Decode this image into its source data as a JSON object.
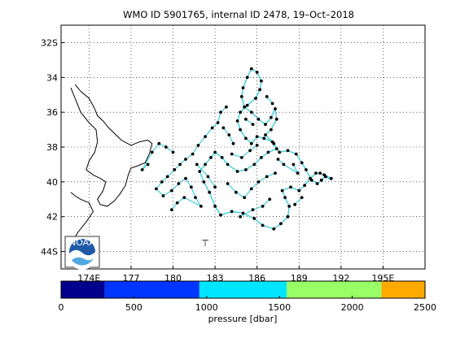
{
  "title": "WMO ID 5901765, internal ID 2478, 19–Oct–2018",
  "map": {
    "lon_range": [
      172,
      198
    ],
    "lat_range": [
      -45,
      -31
    ],
    "lon_ticks": [
      {
        "value": 174,
        "label": "174E"
      },
      {
        "value": 177,
        "label": "177"
      },
      {
        "value": 180,
        "label": "180"
      },
      {
        "value": 183,
        "label": "183"
      },
      {
        "value": 186,
        "label": "186"
      },
      {
        "value": 189,
        "label": "189"
      },
      {
        "value": 192,
        "label": "192"
      },
      {
        "value": 195,
        "label": "195E"
      }
    ],
    "lat_ticks": [
      {
        "value": -32,
        "label": "32S"
      },
      {
        "value": -34,
        "label": "34"
      },
      {
        "value": -36,
        "label": "36"
      },
      {
        "value": -38,
        "label": "38"
      },
      {
        "value": -40,
        "label": "40"
      },
      {
        "value": -42,
        "label": "42"
      },
      {
        "value": -44,
        "label": "44S"
      }
    ],
    "grid": true,
    "grid_style": "dotted",
    "coastline_color": "#000000",
    "track_line_color": "#40d0d8",
    "point_color": "#000000",
    "coastline": [
      [
        173.0,
        -34.4
      ],
      [
        173.4,
        -34.8
      ],
      [
        174.0,
        -35.2
      ],
      [
        174.4,
        -35.8
      ],
      [
        174.6,
        -36.2
      ],
      [
        175.0,
        -36.5
      ],
      [
        175.4,
        -36.9
      ],
      [
        175.8,
        -37.2
      ],
      [
        176.3,
        -37.6
      ],
      [
        177.0,
        -37.9
      ],
      [
        177.6,
        -37.7
      ],
      [
        178.2,
        -37.6
      ],
      [
        178.5,
        -37.8
      ],
      [
        178.3,
        -38.4
      ],
      [
        178.0,
        -38.9
      ],
      [
        177.4,
        -39.1
      ],
      [
        177.0,
        -39.2
      ],
      [
        176.8,
        -39.6
      ],
      [
        176.6,
        -40.2
      ],
      [
        176.2,
        -40.7
      ],
      [
        175.8,
        -41.1
      ],
      [
        175.3,
        -41.4
      ],
      [
        174.8,
        -41.3
      ],
      [
        174.6,
        -41.0
      ],
      [
        175.0,
        -40.5
      ],
      [
        175.2,
        -40.0
      ],
      [
        174.8,
        -39.8
      ],
      [
        174.3,
        -39.6
      ],
      [
        173.8,
        -39.3
      ],
      [
        174.0,
        -38.8
      ],
      [
        174.4,
        -38.3
      ],
      [
        174.6,
        -37.7
      ],
      [
        174.5,
        -37.0
      ],
      [
        174.0,
        -36.6
      ],
      [
        173.4,
        -36.0
      ],
      [
        173.0,
        -35.2
      ],
      [
        172.7,
        -34.6
      ]
    ],
    "coastline_south": [
      [
        172.7,
        -40.6
      ],
      [
        173.0,
        -40.8
      ],
      [
        173.4,
        -41.0
      ],
      [
        174.0,
        -41.2
      ],
      [
        174.3,
        -41.7
      ],
      [
        173.8,
        -42.3
      ],
      [
        173.2,
        -42.9
      ],
      [
        172.7,
        -43.6
      ]
    ],
    "track": [
      [
        191.3,
        -39.8
      ],
      [
        190.8,
        -39.6
      ],
      [
        190.5,
        -39.5
      ],
      [
        190.2,
        -39.5
      ],
      [
        189.8,
        -39.8
      ],
      [
        189.4,
        -40.2
      ],
      [
        189.0,
        -40.5
      ],
      [
        188.4,
        -40.3
      ],
      [
        187.8,
        -40.5
      ],
      [
        188.0,
        -40.9
      ],
      [
        188.3,
        -41.4
      ],
      [
        188.2,
        -42.0
      ],
      [
        187.7,
        -42.4
      ],
      [
        187.2,
        -42.7
      ],
      [
        186.4,
        -42.5
      ],
      [
        185.8,
        -42.1
      ],
      [
        185.0,
        -41.8
      ],
      [
        184.2,
        -41.7
      ],
      [
        183.4,
        -41.9
      ],
      [
        183.0,
        -41.4
      ],
      [
        182.6,
        -40.6
      ],
      [
        182.2,
        -40.0
      ],
      [
        181.9,
        -39.4
      ],
      [
        182.3,
        -39.0
      ],
      [
        182.7,
        -38.6
      ],
      [
        183.0,
        -38.3
      ],
      [
        183.5,
        -38.6
      ],
      [
        183.9,
        -39.0
      ],
      [
        184.6,
        -39.4
      ],
      [
        185.2,
        -39.3
      ],
      [
        185.8,
        -39.0
      ],
      [
        186.3,
        -38.6
      ],
      [
        186.8,
        -38.3
      ],
      [
        187.4,
        -38.1
      ],
      [
        187.1,
        -37.7
      ],
      [
        186.5,
        -37.5
      ],
      [
        186.0,
        -37.4
      ],
      [
        185.6,
        -37.8
      ],
      [
        185.2,
        -37.5
      ],
      [
        184.8,
        -37.0
      ],
      [
        184.6,
        -36.5
      ],
      [
        184.8,
        -36.0
      ],
      [
        185.3,
        -35.6
      ],
      [
        185.9,
        -35.2
      ],
      [
        186.2,
        -34.7
      ],
      [
        186.3,
        -34.2
      ],
      [
        186.0,
        -33.7
      ],
      [
        185.6,
        -33.5
      ],
      [
        185.3,
        -34.0
      ],
      [
        185.0,
        -34.6
      ],
      [
        184.9,
        -35.1
      ],
      [
        185.1,
        -35.7
      ],
      [
        185.6,
        -36.0
      ],
      [
        186.1,
        -36.4
      ],
      [
        186.6,
        -36.7
      ],
      [
        187.0,
        -36.3
      ],
      [
        187.3,
        -35.8
      ],
      [
        187.4,
        -36.4
      ],
      [
        187.0,
        -37.0
      ],
      [
        186.6,
        -37.3
      ],
      [
        187.2,
        -37.8
      ],
      [
        187.6,
        -38.3
      ],
      [
        188.2,
        -38.2
      ],
      [
        188.8,
        -38.4
      ],
      [
        189.2,
        -38.9
      ],
      [
        189.5,
        -39.3
      ],
      [
        189.9,
        -39.9
      ],
      [
        190.3,
        -40.1
      ],
      [
        190.6,
        -39.9
      ],
      [
        190.9,
        -39.7
      ],
      [
        191.3,
        -39.9
      ]
    ],
    "track_points": [
      [
        191.3,
        -39.8
      ],
      [
        190.8,
        -39.6
      ],
      [
        190.5,
        -39.5
      ],
      [
        190.2,
        -39.5
      ],
      [
        189.8,
        -39.8
      ],
      [
        189.4,
        -40.2
      ],
      [
        189.0,
        -40.5
      ],
      [
        188.4,
        -40.3
      ],
      [
        187.8,
        -40.5
      ],
      [
        188.0,
        -40.9
      ],
      [
        188.3,
        -41.4
      ],
      [
        188.2,
        -42.0
      ],
      [
        187.7,
        -42.4
      ],
      [
        187.2,
        -42.7
      ],
      [
        186.4,
        -42.5
      ],
      [
        185.8,
        -42.1
      ],
      [
        185.0,
        -41.8
      ],
      [
        184.2,
        -41.7
      ],
      [
        183.4,
        -41.9
      ],
      [
        183.0,
        -41.4
      ],
      [
        182.6,
        -40.6
      ],
      [
        182.2,
        -40.0
      ],
      [
        181.9,
        -39.4
      ],
      [
        182.3,
        -39.0
      ],
      [
        182.7,
        -38.6
      ],
      [
        183.0,
        -38.3
      ],
      [
        183.5,
        -38.6
      ],
      [
        183.9,
        -39.0
      ],
      [
        184.6,
        -39.4
      ],
      [
        185.2,
        -39.3
      ],
      [
        185.8,
        -39.0
      ],
      [
        186.3,
        -38.6
      ],
      [
        186.8,
        -38.3
      ],
      [
        187.4,
        -38.1
      ],
      [
        187.1,
        -37.7
      ],
      [
        186.5,
        -37.5
      ],
      [
        186.0,
        -37.4
      ],
      [
        185.6,
        -37.8
      ],
      [
        185.2,
        -37.5
      ],
      [
        184.8,
        -37.0
      ],
      [
        184.6,
        -36.5
      ],
      [
        184.8,
        -36.0
      ],
      [
        185.3,
        -35.6
      ],
      [
        185.9,
        -35.2
      ],
      [
        186.2,
        -34.7
      ],
      [
        186.3,
        -34.2
      ],
      [
        186.0,
        -33.7
      ],
      [
        185.6,
        -33.5
      ],
      [
        185.3,
        -34.0
      ],
      [
        185.0,
        -34.6
      ],
      [
        184.9,
        -35.1
      ],
      [
        185.1,
        -35.7
      ],
      [
        185.6,
        -36.0
      ],
      [
        186.1,
        -36.4
      ],
      [
        186.6,
        -36.7
      ],
      [
        187.0,
        -36.3
      ],
      [
        187.3,
        -35.8
      ],
      [
        187.4,
        -36.4
      ],
      [
        187.0,
        -37.0
      ],
      [
        186.6,
        -37.3
      ],
      [
        187.2,
        -37.8
      ],
      [
        187.6,
        -38.3
      ],
      [
        188.2,
        -38.2
      ],
      [
        188.8,
        -38.4
      ],
      [
        189.2,
        -38.9
      ],
      [
        189.5,
        -39.3
      ],
      [
        189.9,
        -39.9
      ],
      [
        190.3,
        -40.1
      ],
      [
        190.6,
        -39.9
      ],
      [
        190.9,
        -39.7
      ],
      [
        183.8,
        -35.7
      ],
      [
        183.4,
        -36.0
      ],
      [
        183.2,
        -36.6
      ],
      [
        182.8,
        -36.9
      ],
      [
        182.3,
        -37.4
      ],
      [
        181.8,
        -37.9
      ],
      [
        181.4,
        -38.4
      ],
      [
        180.9,
        -38.7
      ],
      [
        180.5,
        -39.0
      ],
      [
        180.1,
        -39.3
      ],
      [
        179.6,
        -39.7
      ],
      [
        179.2,
        -40.0
      ],
      [
        178.8,
        -40.4
      ],
      [
        179.3,
        -40.8
      ],
      [
        179.9,
        -40.5
      ],
      [
        180.4,
        -40.1
      ],
      [
        180.9,
        -39.8
      ],
      [
        181.3,
        -40.3
      ],
      [
        181.6,
        -40.9
      ],
      [
        182.0,
        -41.4
      ],
      [
        180.8,
        -40.9
      ],
      [
        180.3,
        -41.2
      ],
      [
        179.9,
        -41.6
      ],
      [
        183.9,
        -40.1
      ],
      [
        184.5,
        -40.6
      ],
      [
        185.1,
        -40.9
      ],
      [
        185.6,
        -40.4
      ],
      [
        186.1,
        -40.0
      ],
      [
        186.7,
        -39.7
      ],
      [
        187.3,
        -39.5
      ],
      [
        184.2,
        -38.4
      ],
      [
        184.9,
        -38.6
      ],
      [
        185.5,
        -38.2
      ],
      [
        186.0,
        -37.9
      ],
      [
        178.2,
        -39.0
      ],
      [
        177.8,
        -39.3
      ],
      [
        178.5,
        -38.3
      ],
      [
        179.0,
        -37.8
      ],
      [
        179.5,
        -38.0
      ],
      [
        180.0,
        -38.3
      ],
      [
        183.6,
        -36.9
      ],
      [
        184.0,
        -37.3
      ],
      [
        184.3,
        -37.8
      ],
      [
        186.7,
        -35.1
      ],
      [
        187.1,
        -35.5
      ],
      [
        185.2,
        -36.4
      ],
      [
        185.7,
        -36.7
      ],
      [
        183.0,
        -40.3
      ],
      [
        182.5,
        -39.7
      ],
      [
        181.7,
        -39.0
      ],
      [
        188.6,
        -39.0
      ],
      [
        188.9,
        -39.5
      ],
      [
        187.9,
        -39.0
      ],
      [
        187.5,
        -38.7
      ],
      [
        189.2,
        -40.9
      ],
      [
        188.7,
        -41.3
      ],
      [
        186.9,
        -41.0
      ],
      [
        186.4,
        -41.4
      ],
      [
        185.7,
        -41.6
      ],
      [
        184.8,
        -42.0
      ]
    ],
    "logo_label": "NOAA",
    "marker_symbol": "⊤"
  },
  "colorbar": {
    "label": "pressure [dbar]",
    "ticks": [
      0,
      500,
      1000,
      1500,
      2000,
      2500
    ],
    "range": [
      0,
      2500
    ],
    "segments": [
      {
        "from": 0,
        "to": 300,
        "color": "#00008c"
      },
      {
        "from": 300,
        "to": 950,
        "color": "#0035ff"
      },
      {
        "from": 950,
        "to": 1550,
        "color": "#00e5ff"
      },
      {
        "from": 1550,
        "to": 2200,
        "color": "#99ff66"
      },
      {
        "from": 2200,
        "to": 2500,
        "color": "#ffaa00"
      }
    ]
  }
}
